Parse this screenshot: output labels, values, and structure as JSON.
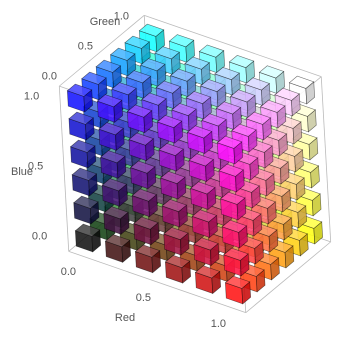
{
  "chart_data": {
    "type": "cube3d",
    "xlabel": "Red",
    "ylabel": "Green",
    "zlabel": "Blue",
    "x": [
      0,
      0.2,
      0.4,
      0.6,
      0.8,
      1
    ],
    "y": [
      0,
      0.2,
      0.4,
      0.6,
      0.8,
      1
    ],
    "z": [
      0,
      0.2,
      0.4,
      0.6,
      0.8,
      1
    ],
    "xlim": [
      0,
      1
    ],
    "ylim": [
      0,
      1
    ],
    "zlim": [
      0,
      1
    ],
    "xticks": [
      {
        "value": 0,
        "label": "0.0"
      },
      0.5,
      {
        "value": 1,
        "label": "1.0"
      }
    ],
    "yticks": [
      {
        "value": 0,
        "label": "0.0"
      },
      0.5,
      {
        "value": 1,
        "label": "1.0"
      }
    ],
    "zticks": [
      {
        "value": 0,
        "label": "0.0"
      },
      0.5,
      {
        "value": 1,
        "label": "1.0"
      }
    ]
  }
}
